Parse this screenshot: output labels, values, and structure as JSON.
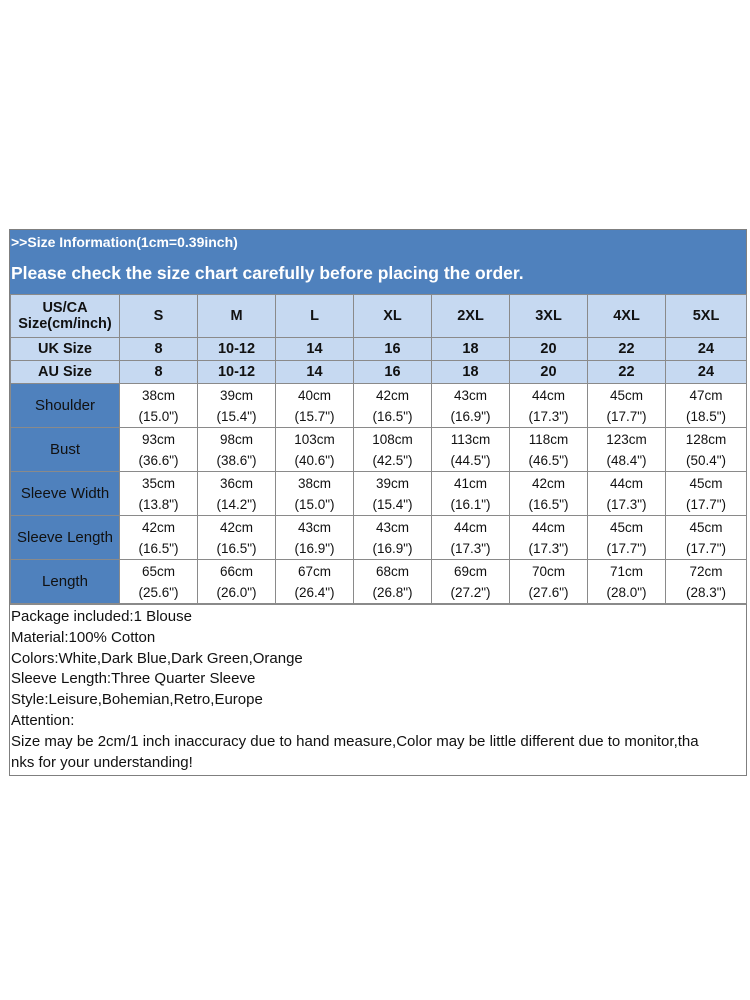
{
  "header": {
    "info": ">>Size Information(1cm=0.39inch)",
    "notice": "Please check the size chart carefully before placing the order."
  },
  "table": {
    "size_header": [
      "US/CA",
      "Size(cm/inch)"
    ],
    "sizes": [
      "S",
      "M",
      "L",
      "XL",
      "2XL",
      "3XL",
      "4XL",
      "5XL"
    ],
    "uk_label": "UK Size",
    "uk": [
      "8",
      "10-12",
      "14",
      "16",
      "18",
      "20",
      "22",
      "24"
    ],
    "au_label": "AU Size",
    "au": [
      "8",
      "10-12",
      "14",
      "16",
      "18",
      "20",
      "22",
      "24"
    ],
    "rows": [
      {
        "label": "Shoulder",
        "cm": [
          "38cm",
          "39cm",
          "40cm",
          "42cm",
          "43cm",
          "44cm",
          "45cm",
          "47cm"
        ],
        "inch": [
          "(15.0\")",
          "(15.4\")",
          "(15.7\")",
          "(16.5\")",
          "(16.9\")",
          "(17.3\")",
          "(17.7\")",
          "(18.5\")"
        ]
      },
      {
        "label": "Bust",
        "cm": [
          "93cm",
          "98cm",
          "103cm",
          "108cm",
          "113cm",
          "118cm",
          "123cm",
          "128cm"
        ],
        "inch": [
          "(36.6\")",
          "(38.6\")",
          "(40.6\")",
          "(42.5\")",
          "(44.5\")",
          "(46.5\")",
          "(48.4\")",
          "(50.4\")"
        ]
      },
      {
        "label": "Sleeve Width",
        "cm": [
          "35cm",
          "36cm",
          "38cm",
          "39cm",
          "41cm",
          "42cm",
          "44cm",
          "45cm"
        ],
        "inch": [
          "(13.8\")",
          "(14.2\")",
          "(15.0\")",
          "(15.4\")",
          "(16.1\")",
          "(16.5\")",
          "(17.3\")",
          "(17.7\")"
        ]
      },
      {
        "label": "Sleeve Length",
        "cm": [
          "42cm",
          "42cm",
          "43cm",
          "43cm",
          "44cm",
          "44cm",
          "45cm",
          "45cm"
        ],
        "inch": [
          "(16.5\")",
          "(16.5\")",
          "(16.9\")",
          "(16.9\")",
          "(17.3\")",
          "(17.3\")",
          "(17.7\")",
          "(17.7\")"
        ]
      },
      {
        "label": "Length",
        "cm": [
          "65cm",
          "66cm",
          "67cm",
          "68cm",
          "69cm",
          "70cm",
          "71cm",
          "72cm"
        ],
        "inch": [
          "(25.6\")",
          "(26.0\")",
          "(26.4\")",
          "(26.8\")",
          "(27.2\")",
          "(27.6\")",
          "(28.0\")",
          "(28.3\")"
        ]
      }
    ]
  },
  "notes": [
    "Package included:1 Blouse",
    "Material:100% Cotton",
    "Colors:White,Dark Blue,Dark Green,Orange",
    "Sleeve Length:Three Quarter Sleeve",
    "Style:Leisure,Bohemian,Retro,Europe",
    "Attention:",
    "Size may be 2cm/1 inch inaccuracy due to hand measure,Color may be little different due to monitor,tha",
    "nks for your understanding!"
  ],
  "colors": {
    "header_bg": "#4f81bd",
    "head_cell_bg": "#c6d9f1",
    "label_bg": "#4f81bd"
  }
}
